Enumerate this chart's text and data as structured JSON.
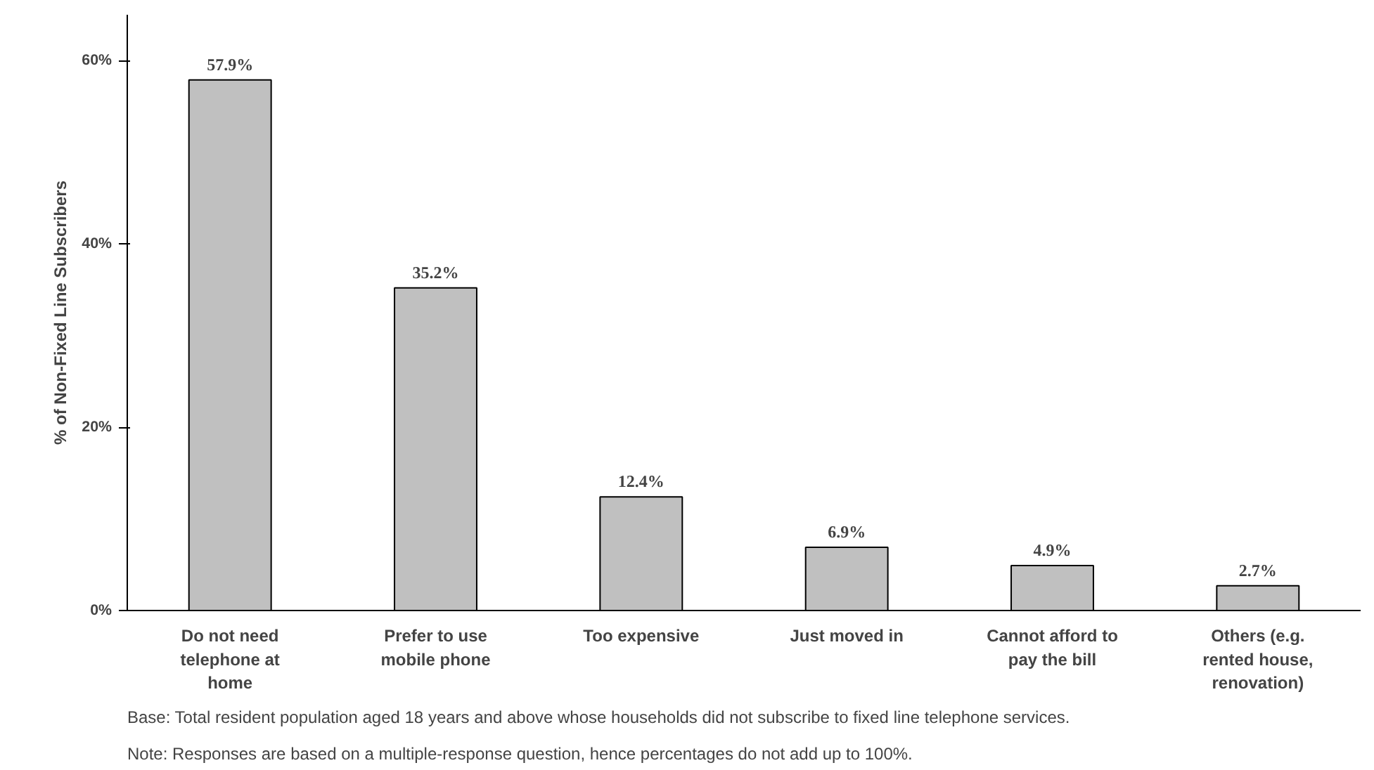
{
  "chart_data": {
    "type": "bar",
    "ylabel": "% of Non-Fixed Line Subscribers",
    "categories": [
      "Do not need telephone at home",
      "Prefer to use mobile phone",
      "Too expensive",
      "Just moved in",
      "Cannot afford to pay the bill",
      "Others (e.g. rented house, renovation)"
    ],
    "values": [
      57.9,
      35.2,
      12.4,
      6.9,
      4.9,
      2.7
    ],
    "value_labels": [
      "57.9%",
      "35.2%",
      "12.4%",
      "6.9%",
      "4.9%",
      "2.7%"
    ],
    "color": "#c0c0c0",
    "ylim": [
      0,
      65
    ],
    "yticks": [
      {
        "value": 0,
        "label": "0%"
      },
      {
        "value": 20,
        "label": "20%"
      },
      {
        "value": 40,
        "label": "40%"
      },
      {
        "value": 60,
        "label": "60%"
      }
    ],
    "grid": false,
    "annotations": [
      "Base: Total resident population aged 18 years and above whose households did not subscribe to fixed line telephone services.",
      "Note: Responses are based on a multiple-response question, hence percentages do not add up to 100%."
    ]
  }
}
